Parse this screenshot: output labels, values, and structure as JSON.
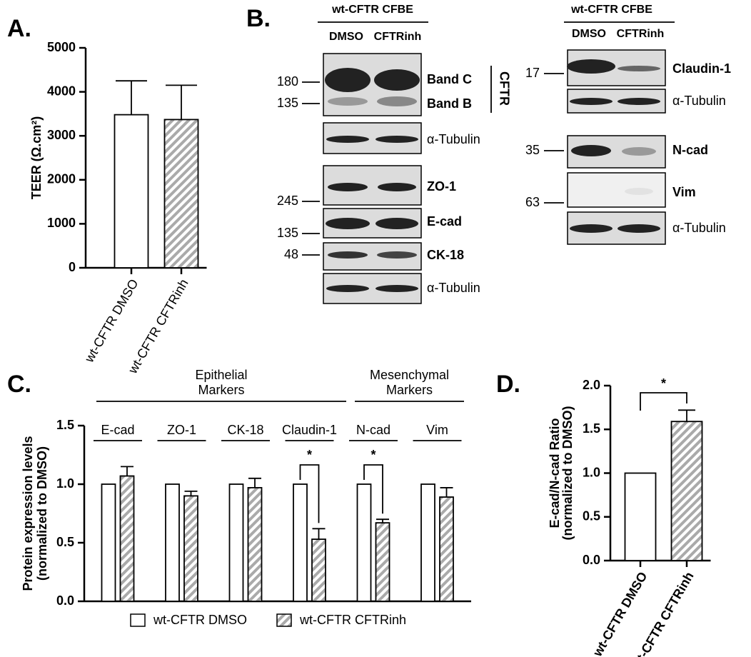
{
  "panel_labels": [
    "A.",
    "B.",
    "C.",
    "D."
  ],
  "chart_data": [
    {
      "type": "bar",
      "ylabel": "TEER (Ω.cm²)",
      "categories": [
        "wt-CFTR DMSO",
        "wt-CFTR CFTRinh"
      ],
      "values": [
        3480,
        3370
      ],
      "errors": [
        770,
        780
      ],
      "colors": [
        "#ffffff",
        "#aaaaaa"
      ],
      "patterns": [
        "solid",
        "hatch"
      ],
      "ylim": [
        0,
        5000
      ],
      "yticks": [
        0,
        1000,
        2000,
        3000,
        4000,
        5000
      ]
    },
    {
      "type": "grouped_bar",
      "ylabel": [
        "Protein expression levels",
        "(normalized to DMSO)"
      ],
      "group_headers": [
        [
          "Epithelial",
          "Markers"
        ],
        [
          "Mesenchymal",
          "Markers"
        ]
      ],
      "categories": [
        "E-cad",
        "ZO-1",
        "CK-18",
        "Claudin-1",
        "N-cad",
        "Vim"
      ],
      "series": [
        {
          "name": "wt-CFTR DMSO",
          "color": "#ffffff",
          "pattern": "solid",
          "values": [
            1.0,
            1.0,
            1.0,
            1.0,
            1.0,
            1.0
          ]
        },
        {
          "name": "wt-CFTR CFTRinh",
          "color": "#aaaaaa",
          "pattern": "hatch",
          "values": [
            1.07,
            0.9,
            0.97,
            0.53,
            0.67,
            0.89
          ],
          "errors": [
            0.08,
            0.04,
            0.08,
            0.09,
            0.03,
            0.08
          ]
        }
      ],
      "annotations": [
        "*",
        "*"
      ],
      "ylim": [
        0,
        1.5
      ],
      "yticks": [
        {
          "value": 0,
          "label": "0.0"
        },
        0.5,
        {
          "value": 1,
          "label": "1.0"
        },
        1.5
      ]
    },
    {
      "type": "bar",
      "ylabel": [
        "E-cad/N-cad Ratio",
        "(normalized to DMSO)"
      ],
      "categories": [
        "wt-CFTR DMSO",
        "wt-CFTR CFTRinh"
      ],
      "values": [
        1.0,
        1.59
      ],
      "errors": [
        null,
        0.13
      ],
      "colors": [
        "#ffffff",
        "#aaaaaa"
      ],
      "patterns": [
        "solid",
        "hatch"
      ],
      "annotations": [
        "*"
      ],
      "ylim": [
        0,
        2
      ],
      "yticks": [
        {
          "value": 0,
          "label": "0.0"
        },
        0.5,
        {
          "value": 1,
          "label": "1.0"
        },
        1.5,
        {
          "value": 2,
          "label": "2.0"
        }
      ]
    }
  ],
  "blots": {
    "left": {
      "header": "wt-CFTR CFBE",
      "lanes": [
        "DMSO",
        "CFTRinh"
      ],
      "markers": [
        180,
        135,
        245,
        135,
        48
      ],
      "labels": [
        "Band C",
        "Band B",
        "CFTR",
        "α-Tubulin",
        "ZO-1",
        "E-cad",
        "CK-18",
        "α-Tubulin"
      ]
    },
    "right": {
      "header": "wt-CFTR CFBE",
      "lanes": [
        "DMSO",
        "CFTRinh"
      ],
      "markers": [
        17,
        35,
        63
      ],
      "labels": [
        "Claudin-1",
        "α-Tubulin",
        "N-cad",
        "Vim",
        "α-Tubulin"
      ]
    }
  }
}
